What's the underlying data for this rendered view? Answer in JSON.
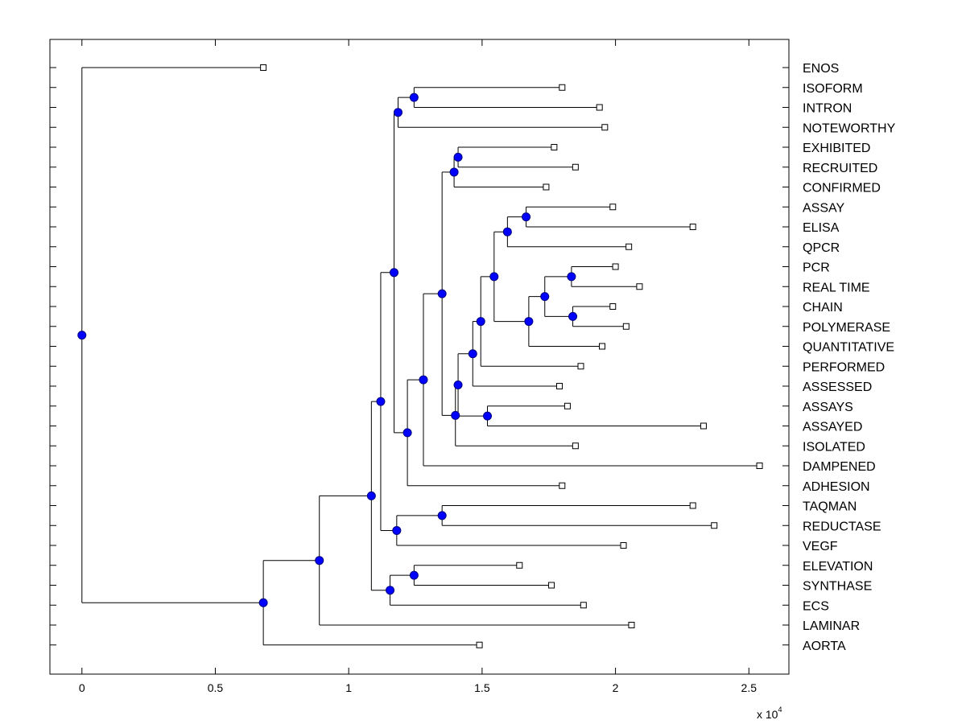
{
  "chart_data": {
    "type": "dendrogram",
    "title": "",
    "xlabel": "",
    "ylabel": "",
    "x_multiplier_label": "x 10",
    "x_multiplier_exponent": "4",
    "xlim": [
      -0.12,
      2.65
    ],
    "x_ticks": [
      0,
      0.5,
      1,
      1.5,
      2,
      2.5
    ],
    "x_tick_labels": [
      "0",
      "0.5",
      "1",
      "1.5",
      "2",
      "2.5"
    ],
    "leaf_order": [
      "ENOS",
      "ISOFORM",
      "INTRON",
      "NOTEWORTHY",
      "EXHIBITED",
      "RECRUITED",
      "CONFIRMED",
      "ASSAY",
      "ELISA",
      "QPCR",
      "PCR",
      "REAL TIME",
      "CHAIN",
      "POLYMERASE",
      "QUANTITATIVE",
      "PERFORMED",
      "ASSESSED",
      "ASSAYS",
      "ASSAYED",
      "ISOLATED",
      "DAMPENED",
      "ADHESION",
      "TAQMAN",
      "REDUCTASE",
      "VEGF",
      "ELEVATION",
      "SYNTHASE",
      "ECS",
      "LAMINAR",
      "AORTA"
    ],
    "leaves": {
      "ENOS": 0.68,
      "ISOFORM": 1.8,
      "INTRON": 1.94,
      "NOTEWORTHY": 1.96,
      "EXHIBITED": 1.77,
      "RECRUITED": 1.85,
      "CONFIRMED": 1.74,
      "ASSAY": 1.99,
      "ELISA": 2.29,
      "QPCR": 2.05,
      "PCR": 2.0,
      "REAL TIME": 2.09,
      "CHAIN": 1.99,
      "POLYMERASE": 2.04,
      "QUANTITATIVE": 1.95,
      "PERFORMED": 1.87,
      "ASSESSED": 1.79,
      "ASSAYS": 1.82,
      "ASSAYED": 2.33,
      "ISOLATED": 1.85,
      "DAMPENED": 2.54,
      "ADHESION": 1.8,
      "TAQMAN": 2.29,
      "REDUCTASE": 2.37,
      "VEGF": 2.03,
      "ELEVATION": 1.64,
      "SYNTHASE": 1.76,
      "ECS": 1.88,
      "LAMINAR": 2.06,
      "AORTA": 1.49
    },
    "nodes": {
      "n_iso_int": {
        "x": 1.245,
        "children": [
          "ISOFORM",
          "INTRON"
        ]
      },
      "n_noteworthy": {
        "x": 1.185,
        "children": [
          "n_iso_int",
          "NOTEWORTHY"
        ]
      },
      "n_exh_rec": {
        "x": 1.41,
        "children": [
          "EXHIBITED",
          "RECRUITED"
        ]
      },
      "n_confirmed": {
        "x": 1.395,
        "children": [
          "n_exh_rec",
          "CONFIRMED"
        ]
      },
      "n_assay_elisa": {
        "x": 1.665,
        "children": [
          "ASSAY",
          "ELISA"
        ]
      },
      "n_qpcr": {
        "x": 1.595,
        "children": [
          "n_assay_elisa",
          "QPCR"
        ]
      },
      "n_pcr_rt": {
        "x": 1.835,
        "children": [
          "PCR",
          "REAL TIME"
        ]
      },
      "n_chain_poly": {
        "x": 1.84,
        "children": [
          "CHAIN",
          "POLYMERASE"
        ]
      },
      "n_pcr_chain": {
        "x": 1.735,
        "children": [
          "n_pcr_rt",
          "n_chain_poly"
        ]
      },
      "n_quant": {
        "x": 1.675,
        "children": [
          "n_pcr_chain",
          "QUANTITATIVE"
        ]
      },
      "n_qpcr_quant": {
        "x": 1.545,
        "children": [
          "n_qpcr",
          "n_quant"
        ]
      },
      "n_performed": {
        "x": 1.495,
        "children": [
          "n_qpcr_quant",
          "PERFORMED"
        ]
      },
      "n_assessed": {
        "x": 1.465,
        "children": [
          "n_performed",
          "ASSESSED"
        ]
      },
      "n_assays_assayed": {
        "x": 1.52,
        "children": [
          "ASSAYS",
          "ASSAYED"
        ]
      },
      "n_assessed_assays": {
        "x": 1.41,
        "children": [
          "n_assessed",
          "n_assays_assayed"
        ]
      },
      "n_isolated": {
        "x": 1.4,
        "children": [
          "n_assessed_assays",
          "ISOLATED"
        ]
      },
      "n_confirmed_isolated": {
        "x": 1.35,
        "children": [
          "n_confirmed",
          "n_isolated"
        ]
      },
      "n_dampened": {
        "x": 1.28,
        "children": [
          "n_confirmed_isolated",
          "DAMPENED"
        ]
      },
      "n_adhesion": {
        "x": 1.22,
        "children": [
          "n_dampened",
          "ADHESION"
        ]
      },
      "n_upper": {
        "x": 1.17,
        "children": [
          "n_noteworthy",
          "n_adhesion"
        ]
      },
      "n_taq_red": {
        "x": 1.35,
        "children": [
          "TAQMAN",
          "REDUCTASE"
        ]
      },
      "n_vegf": {
        "x": 1.18,
        "children": [
          "n_taq_red",
          "VEGF"
        ]
      },
      "n_upper_vegf": {
        "x": 1.12,
        "children": [
          "n_upper",
          "n_vegf"
        ]
      },
      "n_elev_syn": {
        "x": 1.245,
        "children": [
          "ELEVATION",
          "SYNTHASE"
        ]
      },
      "n_ecs": {
        "x": 1.155,
        "children": [
          "n_elev_syn",
          "ECS"
        ]
      },
      "n_mid": {
        "x": 1.085,
        "children": [
          "n_upper_vegf",
          "n_ecs"
        ]
      },
      "n_laminar": {
        "x": 0.89,
        "children": [
          "n_mid",
          "LAMINAR"
        ]
      },
      "n_aorta": {
        "x": 0.68,
        "children": [
          "n_laminar",
          "AORTA"
        ]
      },
      "root": {
        "x": 0.0,
        "children": [
          "ENOS",
          "n_aorta"
        ]
      }
    },
    "root": "root",
    "colors": {
      "node_fill": "#0000ff",
      "node_stroke": "#000080",
      "line": "#000000",
      "leaf_marker_fill": "#ffffff"
    }
  }
}
